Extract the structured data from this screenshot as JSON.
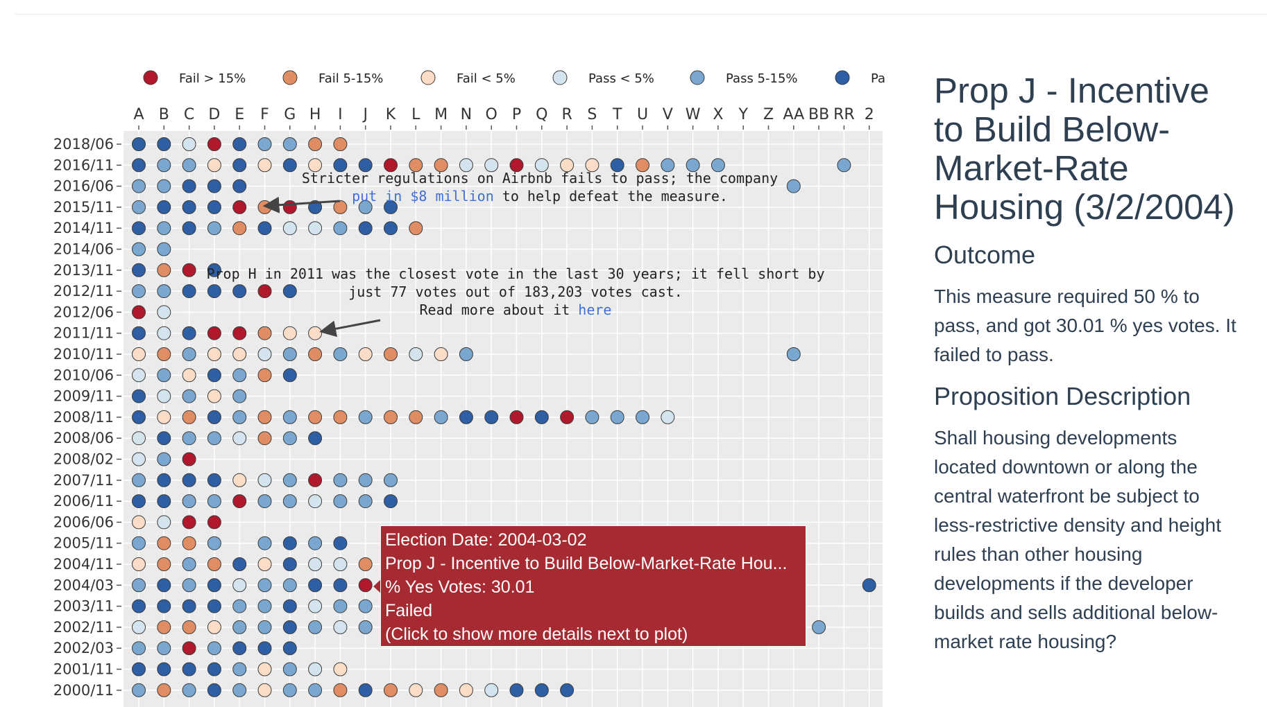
{
  "chart_data": {
    "type": "scatter",
    "colors": {
      "fail_gt15": "#b2182b",
      "fail_5_15": "#e08d63",
      "fail_lt5": "#fadcc7",
      "pass_lt5": "#d4e4ee",
      "pass_5_15": "#79a7cf",
      "pass_gt15": "#2e5fa5"
    },
    "legend": [
      {
        "key": "fail_gt15",
        "label": "Fail > 15%"
      },
      {
        "key": "fail_5_15",
        "label": "Fail 5-15%"
      },
      {
        "key": "fail_lt5",
        "label": "Fail < 5%"
      },
      {
        "key": "pass_lt5",
        "label": "Pass < 5%"
      },
      {
        "key": "pass_5_15",
        "label": "Pass 5-15%"
      },
      {
        "key": "pass_gt15",
        "label": "Pa"
      }
    ],
    "x_categories": [
      "A",
      "B",
      "C",
      "D",
      "E",
      "F",
      "G",
      "H",
      "I",
      "J",
      "K",
      "L",
      "M",
      "N",
      "O",
      "P",
      "Q",
      "R",
      "S",
      "T",
      "U",
      "V",
      "W",
      "X",
      "Y",
      "Z",
      "AA",
      "BB",
      "RR",
      "2"
    ],
    "y_categories": [
      "2018/06",
      "2016/11",
      "2016/06",
      "2015/11",
      "2014/11",
      "2014/06",
      "2013/11",
      "2012/11",
      "2012/06",
      "2011/11",
      "2010/11",
      "2010/06",
      "2009/11",
      "2008/11",
      "2008/06",
      "2008/02",
      "2007/11",
      "2006/11",
      "2006/06",
      "2005/11",
      "2004/11",
      "2004/03",
      "2003/11",
      "2002/11",
      "2002/03",
      "2001/11",
      "2000/11"
    ],
    "rows": [
      {
        "election": "2018/06",
        "props": [
          [
            "A",
            5
          ],
          [
            "B",
            5
          ],
          [
            "C",
            3
          ],
          [
            "D",
            0
          ],
          [
            "E",
            5
          ],
          [
            "F",
            4
          ],
          [
            "G",
            4
          ],
          [
            "H",
            1
          ],
          [
            "I",
            1
          ]
        ]
      },
      {
        "election": "2016/11",
        "props": [
          [
            "A",
            5
          ],
          [
            "B",
            4
          ],
          [
            "C",
            4
          ],
          [
            "D",
            2
          ],
          [
            "E",
            5
          ],
          [
            "F",
            2
          ],
          [
            "G",
            5
          ],
          [
            "H",
            2
          ],
          [
            "I",
            5
          ],
          [
            "J",
            5
          ],
          [
            "K",
            0
          ],
          [
            "L",
            1
          ],
          [
            "M",
            1
          ],
          [
            "N",
            3
          ],
          [
            "O",
            3
          ],
          [
            "P",
            0
          ],
          [
            "Q",
            3
          ],
          [
            "R",
            2
          ],
          [
            "S",
            2
          ],
          [
            "T",
            5
          ],
          [
            "U",
            1
          ],
          [
            "V",
            4
          ],
          [
            "W",
            4
          ],
          [
            "X",
            4
          ],
          [
            "RR",
            4
          ]
        ]
      },
      {
        "election": "2016/06",
        "props": [
          [
            "A",
            4
          ],
          [
            "B",
            4
          ],
          [
            "C",
            5
          ],
          [
            "D",
            5
          ],
          [
            "E",
            5
          ],
          [
            "AA",
            4
          ]
        ]
      },
      {
        "election": "2015/11",
        "props": [
          [
            "A",
            4
          ],
          [
            "B",
            5
          ],
          [
            "C",
            5
          ],
          [
            "D",
            5
          ],
          [
            "E",
            0
          ],
          [
            "F",
            1
          ],
          [
            "G",
            0
          ],
          [
            "H",
            5
          ],
          [
            "I",
            1
          ],
          [
            "J",
            4
          ],
          [
            "K",
            5
          ]
        ]
      },
      {
        "election": "2014/11",
        "props": [
          [
            "A",
            5
          ],
          [
            "B",
            4
          ],
          [
            "C",
            5
          ],
          [
            "D",
            4
          ],
          [
            "E",
            1
          ],
          [
            "F",
            5
          ],
          [
            "G",
            3
          ],
          [
            "H",
            3
          ],
          [
            "I",
            4
          ],
          [
            "J",
            5
          ],
          [
            "K",
            5
          ],
          [
            "L",
            1
          ]
        ]
      },
      {
        "election": "2014/06",
        "props": [
          [
            "A",
            4
          ],
          [
            "B",
            4
          ]
        ]
      },
      {
        "election": "2013/11",
        "props": [
          [
            "A",
            5
          ],
          [
            "B",
            1
          ],
          [
            "C",
            0
          ],
          [
            "D",
            5
          ]
        ]
      },
      {
        "election": "2012/11",
        "props": [
          [
            "A",
            4
          ],
          [
            "B",
            4
          ],
          [
            "C",
            5
          ],
          [
            "D",
            5
          ],
          [
            "E",
            5
          ],
          [
            "F",
            0
          ],
          [
            "G",
            5
          ]
        ]
      },
      {
        "election": "2012/06",
        "props": [
          [
            "A",
            0
          ],
          [
            "B",
            3
          ]
        ]
      },
      {
        "election": "2011/11",
        "props": [
          [
            "A",
            5
          ],
          [
            "B",
            3
          ],
          [
            "C",
            5
          ],
          [
            "D",
            0
          ],
          [
            "E",
            0
          ],
          [
            "F",
            1
          ],
          [
            "G",
            2
          ],
          [
            "H",
            2
          ]
        ]
      },
      {
        "election": "2010/11",
        "props": [
          [
            "A",
            2
          ],
          [
            "B",
            1
          ],
          [
            "C",
            4
          ],
          [
            "D",
            2
          ],
          [
            "E",
            2
          ],
          [
            "F",
            3
          ],
          [
            "G",
            4
          ],
          [
            "H",
            1
          ],
          [
            "I",
            4
          ],
          [
            "J",
            2
          ],
          [
            "K",
            1
          ],
          [
            "L",
            3
          ],
          [
            "M",
            2
          ],
          [
            "N",
            4
          ],
          [
            "AA",
            4
          ]
        ]
      },
      {
        "election": "2010/06",
        "props": [
          [
            "A",
            3
          ],
          [
            "B",
            4
          ],
          [
            "C",
            2
          ],
          [
            "D",
            5
          ],
          [
            "E",
            4
          ],
          [
            "F",
            1
          ],
          [
            "G",
            5
          ]
        ]
      },
      {
        "election": "2009/11",
        "props": [
          [
            "A",
            5
          ],
          [
            "B",
            3
          ],
          [
            "C",
            4
          ],
          [
            "D",
            2
          ],
          [
            "E",
            4
          ]
        ]
      },
      {
        "election": "2008/11",
        "props": [
          [
            "A",
            5
          ],
          [
            "B",
            2
          ],
          [
            "C",
            1
          ],
          [
            "D",
            5
          ],
          [
            "E",
            4
          ],
          [
            "F",
            1
          ],
          [
            "G",
            4
          ],
          [
            "H",
            1
          ],
          [
            "I",
            1
          ],
          [
            "J",
            4
          ],
          [
            "K",
            1
          ],
          [
            "L",
            1
          ],
          [
            "M",
            4
          ],
          [
            "N",
            5
          ],
          [
            "O",
            5
          ],
          [
            "P",
            0
          ],
          [
            "Q",
            5
          ],
          [
            "R",
            0
          ],
          [
            "S",
            4
          ],
          [
            "T",
            4
          ],
          [
            "U",
            4
          ],
          [
            "V",
            3
          ]
        ]
      },
      {
        "election": "2008/06",
        "props": [
          [
            "A",
            3
          ],
          [
            "B",
            5
          ],
          [
            "C",
            4
          ],
          [
            "D",
            4
          ],
          [
            "E",
            3
          ],
          [
            "F",
            1
          ],
          [
            "G",
            4
          ],
          [
            "H",
            5
          ]
        ]
      },
      {
        "election": "2008/02",
        "props": [
          [
            "A",
            3
          ],
          [
            "B",
            4
          ],
          [
            "C",
            0
          ]
        ]
      },
      {
        "election": "2007/11",
        "props": [
          [
            "A",
            4
          ],
          [
            "B",
            5
          ],
          [
            "C",
            5
          ],
          [
            "D",
            5
          ],
          [
            "E",
            2
          ],
          [
            "F",
            3
          ],
          [
            "G",
            4
          ],
          [
            "H",
            0
          ],
          [
            "I",
            4
          ],
          [
            "J",
            4
          ],
          [
            "K",
            4
          ]
        ]
      },
      {
        "election": "2006/11",
        "props": [
          [
            "A",
            5
          ],
          [
            "B",
            5
          ],
          [
            "C",
            4
          ],
          [
            "D",
            4
          ],
          [
            "E",
            0
          ],
          [
            "F",
            4
          ],
          [
            "G",
            4
          ],
          [
            "H",
            3
          ],
          [
            "I",
            4
          ],
          [
            "J",
            4
          ],
          [
            "K",
            5
          ]
        ]
      },
      {
        "election": "2006/06",
        "props": [
          [
            "A",
            2
          ],
          [
            "B",
            3
          ],
          [
            "C",
            0
          ],
          [
            "D",
            0
          ]
        ]
      },
      {
        "election": "2005/11",
        "props": [
          [
            "A",
            4
          ],
          [
            "B",
            1
          ],
          [
            "C",
            1
          ],
          [
            "D",
            4
          ],
          [
            "F",
            4
          ],
          [
            "G",
            5
          ],
          [
            "H",
            4
          ],
          [
            "I",
            5
          ]
        ]
      },
      {
        "election": "2004/11",
        "props": [
          [
            "A",
            2
          ],
          [
            "B",
            1
          ],
          [
            "C",
            4
          ],
          [
            "D",
            1
          ],
          [
            "E",
            5
          ],
          [
            "F",
            2
          ],
          [
            "G",
            5
          ],
          [
            "H",
            3
          ],
          [
            "I",
            3
          ],
          [
            "J",
            1
          ]
        ]
      },
      {
        "election": "2004/03",
        "props": [
          [
            "A",
            4
          ],
          [
            "B",
            5
          ],
          [
            "C",
            4
          ],
          [
            "D",
            5
          ],
          [
            "E",
            3
          ],
          [
            "F",
            4
          ],
          [
            "G",
            4
          ],
          [
            "H",
            5
          ],
          [
            "I",
            5
          ],
          [
            "J",
            0
          ],
          [
            "2",
            5
          ]
        ]
      },
      {
        "election": "2003/11",
        "props": [
          [
            "A",
            5
          ],
          [
            "B",
            5
          ],
          [
            "C",
            5
          ],
          [
            "D",
            5
          ],
          [
            "E",
            4
          ],
          [
            "F",
            4
          ],
          [
            "G",
            5
          ],
          [
            "H",
            3
          ],
          [
            "I",
            4
          ],
          [
            "J",
            4
          ]
        ]
      },
      {
        "election": "2002/11",
        "props": [
          [
            "A",
            3
          ],
          [
            "B",
            1
          ],
          [
            "C",
            1
          ],
          [
            "D",
            2
          ],
          [
            "E",
            4
          ],
          [
            "F",
            4
          ],
          [
            "G",
            5
          ],
          [
            "H",
            4
          ],
          [
            "I",
            3
          ],
          [
            "J",
            4
          ],
          [
            "BB",
            4
          ]
        ]
      },
      {
        "election": "2002/03",
        "props": [
          [
            "A",
            4
          ],
          [
            "B",
            4
          ],
          [
            "C",
            0
          ],
          [
            "D",
            4
          ],
          [
            "E",
            5
          ],
          [
            "F",
            5
          ],
          [
            "G",
            5
          ]
        ]
      },
      {
        "election": "2001/11",
        "props": [
          [
            "A",
            5
          ],
          [
            "B",
            5
          ],
          [
            "C",
            5
          ],
          [
            "D",
            5
          ],
          [
            "E",
            4
          ],
          [
            "F",
            2
          ],
          [
            "G",
            4
          ],
          [
            "H",
            3
          ],
          [
            "I",
            2
          ]
        ]
      },
      {
        "election": "2000/11",
        "props": [
          [
            "A",
            4
          ],
          [
            "B",
            1
          ],
          [
            "C",
            4
          ],
          [
            "D",
            5
          ],
          [
            "E",
            4
          ],
          [
            "F",
            2
          ],
          [
            "G",
            4
          ],
          [
            "H",
            4
          ],
          [
            "I",
            1
          ],
          [
            "J",
            5
          ],
          [
            "K",
            1
          ],
          [
            "L",
            2
          ],
          [
            "M",
            1
          ],
          [
            "N",
            2
          ],
          [
            "O",
            3
          ],
          [
            "P",
            5
          ],
          [
            "Q",
            5
          ],
          [
            "R",
            5
          ]
        ]
      }
    ],
    "annotations": [
      {
        "id": "airbnb",
        "line1": "Stricter regulations on Airbnb fails to pass; the company",
        "link": "put in $8 million",
        "line2_rest": " to help defeat the measure.",
        "arrow_to": {
          "election": "2015/11",
          "prop": "F"
        }
      },
      {
        "id": "proph",
        "line1": "Prop H in 2011 was the closest vote in the last 30 years; it fell short by",
        "line2": "just 77 votes out of 183,203 votes cast.",
        "line3": "Read more about it ",
        "link": "here",
        "arrow_to": {
          "election": "2011/11",
          "prop": "H"
        }
      }
    ],
    "grid": true,
    "legend_position": "top"
  },
  "tooltip": {
    "line1": "Election Date: 2004-03-02",
    "line2": "Prop J - Incentive to Build Below-Market-Rate Hou...",
    "line3": "% Yes Votes: 30.01",
    "line4": "Failed",
    "line5": "(Click to show more details next to plot)"
  },
  "details": {
    "title": "Prop J - Incentive to Build Below-Market-Rate Housing (3/2/2004)",
    "outcome_heading": "Outcome",
    "outcome_text": "This measure required 50 % to pass, and got 30.01 % yes votes. It failed to pass.",
    "description_heading": "Proposition Description",
    "description_text": "Shall housing developments located downtown or along the central waterfront be subject to less-restrictive density and height rules than other housing developments if the developer builds and sells additional below-market rate housing?"
  }
}
